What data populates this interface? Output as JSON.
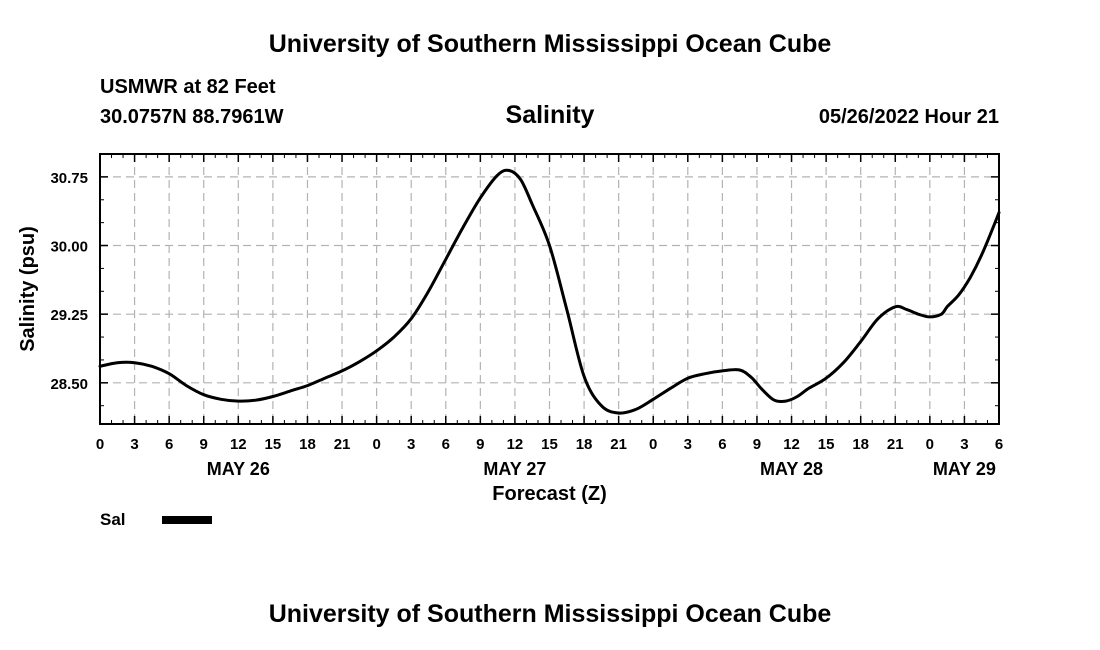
{
  "header": {
    "title": "University of Southern Mississippi Ocean Cube",
    "station": "USMWR at 82 Feet",
    "coordinates": "30.0757N  88.7961W",
    "subtitle": "Salinity",
    "datetime": "05/26/2022 Hour 21"
  },
  "footer": {
    "title": "University of Southern Mississippi Ocean Cube"
  },
  "chart_data": {
    "type": "line",
    "title": "Salinity",
    "xlabel": "Forecast (Z)",
    "ylabel": "Salinity (psu)",
    "x_unit": "hours since 00Z May 26",
    "xlim": [
      0,
      78
    ],
    "ylim": [
      28.05,
      31.0
    ],
    "y_ticks": [
      30.75,
      30.0,
      29.25,
      28.5
    ],
    "y_tick_labels": [
      "30.75",
      "30.00",
      "29.25",
      "28.50"
    ],
    "x_ticks": [
      0,
      3,
      6,
      9,
      12,
      15,
      18,
      21,
      24,
      27,
      30,
      33,
      36,
      39,
      42,
      45,
      48,
      51,
      54,
      57,
      60,
      63,
      66,
      69,
      72,
      75,
      78
    ],
    "x_tick_labels": [
      "0",
      "3",
      "6",
      "9",
      "12",
      "15",
      "18",
      "21",
      "0",
      "3",
      "6",
      "9",
      "12",
      "15",
      "18",
      "21",
      "0",
      "3",
      "6",
      "9",
      "12",
      "15",
      "18",
      "21",
      "0",
      "3",
      "6"
    ],
    "day_labels": [
      {
        "x": 12,
        "label": "MAY 26"
      },
      {
        "x": 36,
        "label": "MAY 27"
      },
      {
        "x": 60,
        "label": "MAY 28"
      },
      {
        "x": 75,
        "label": "MAY 29"
      }
    ],
    "grid": true,
    "legend": [
      {
        "label": "Sal",
        "color": "#000000"
      }
    ],
    "series": [
      {
        "name": "Sal",
        "x": [
          0,
          1.5,
          3,
          4.5,
          6,
          7.5,
          9,
          10.5,
          12,
          13.5,
          15,
          16.5,
          18,
          19.5,
          21,
          22.5,
          24,
          25.5,
          27,
          28.5,
          30,
          31.5,
          33,
          34.5,
          35.5,
          36.5,
          37.5,
          39,
          40.5,
          42,
          43.5,
          45,
          46.5,
          48,
          49.5,
          51,
          52.5,
          54,
          55.5,
          56.5,
          57.5,
          58.5,
          59.5,
          60.5,
          61.5,
          63,
          64.5,
          66,
          67.5,
          69,
          70,
          71,
          72,
          73,
          73.5,
          74.5,
          75.5,
          76.5,
          77.5,
          78
        ],
        "values": [
          28.68,
          28.72,
          28.72,
          28.68,
          28.6,
          28.47,
          28.37,
          28.32,
          28.3,
          28.31,
          28.35,
          28.41,
          28.47,
          28.55,
          28.63,
          28.73,
          28.85,
          29.0,
          29.2,
          29.5,
          29.85,
          30.2,
          30.52,
          30.77,
          30.82,
          30.72,
          30.45,
          30.0,
          29.3,
          28.57,
          28.25,
          28.17,
          28.21,
          28.32,
          28.44,
          28.55,
          28.6,
          28.63,
          28.64,
          28.56,
          28.42,
          28.31,
          28.3,
          28.35,
          28.44,
          28.55,
          28.72,
          28.95,
          29.2,
          29.33,
          29.3,
          29.25,
          29.22,
          29.25,
          29.33,
          29.46,
          29.65,
          29.9,
          30.2,
          30.36
        ]
      }
    ]
  }
}
